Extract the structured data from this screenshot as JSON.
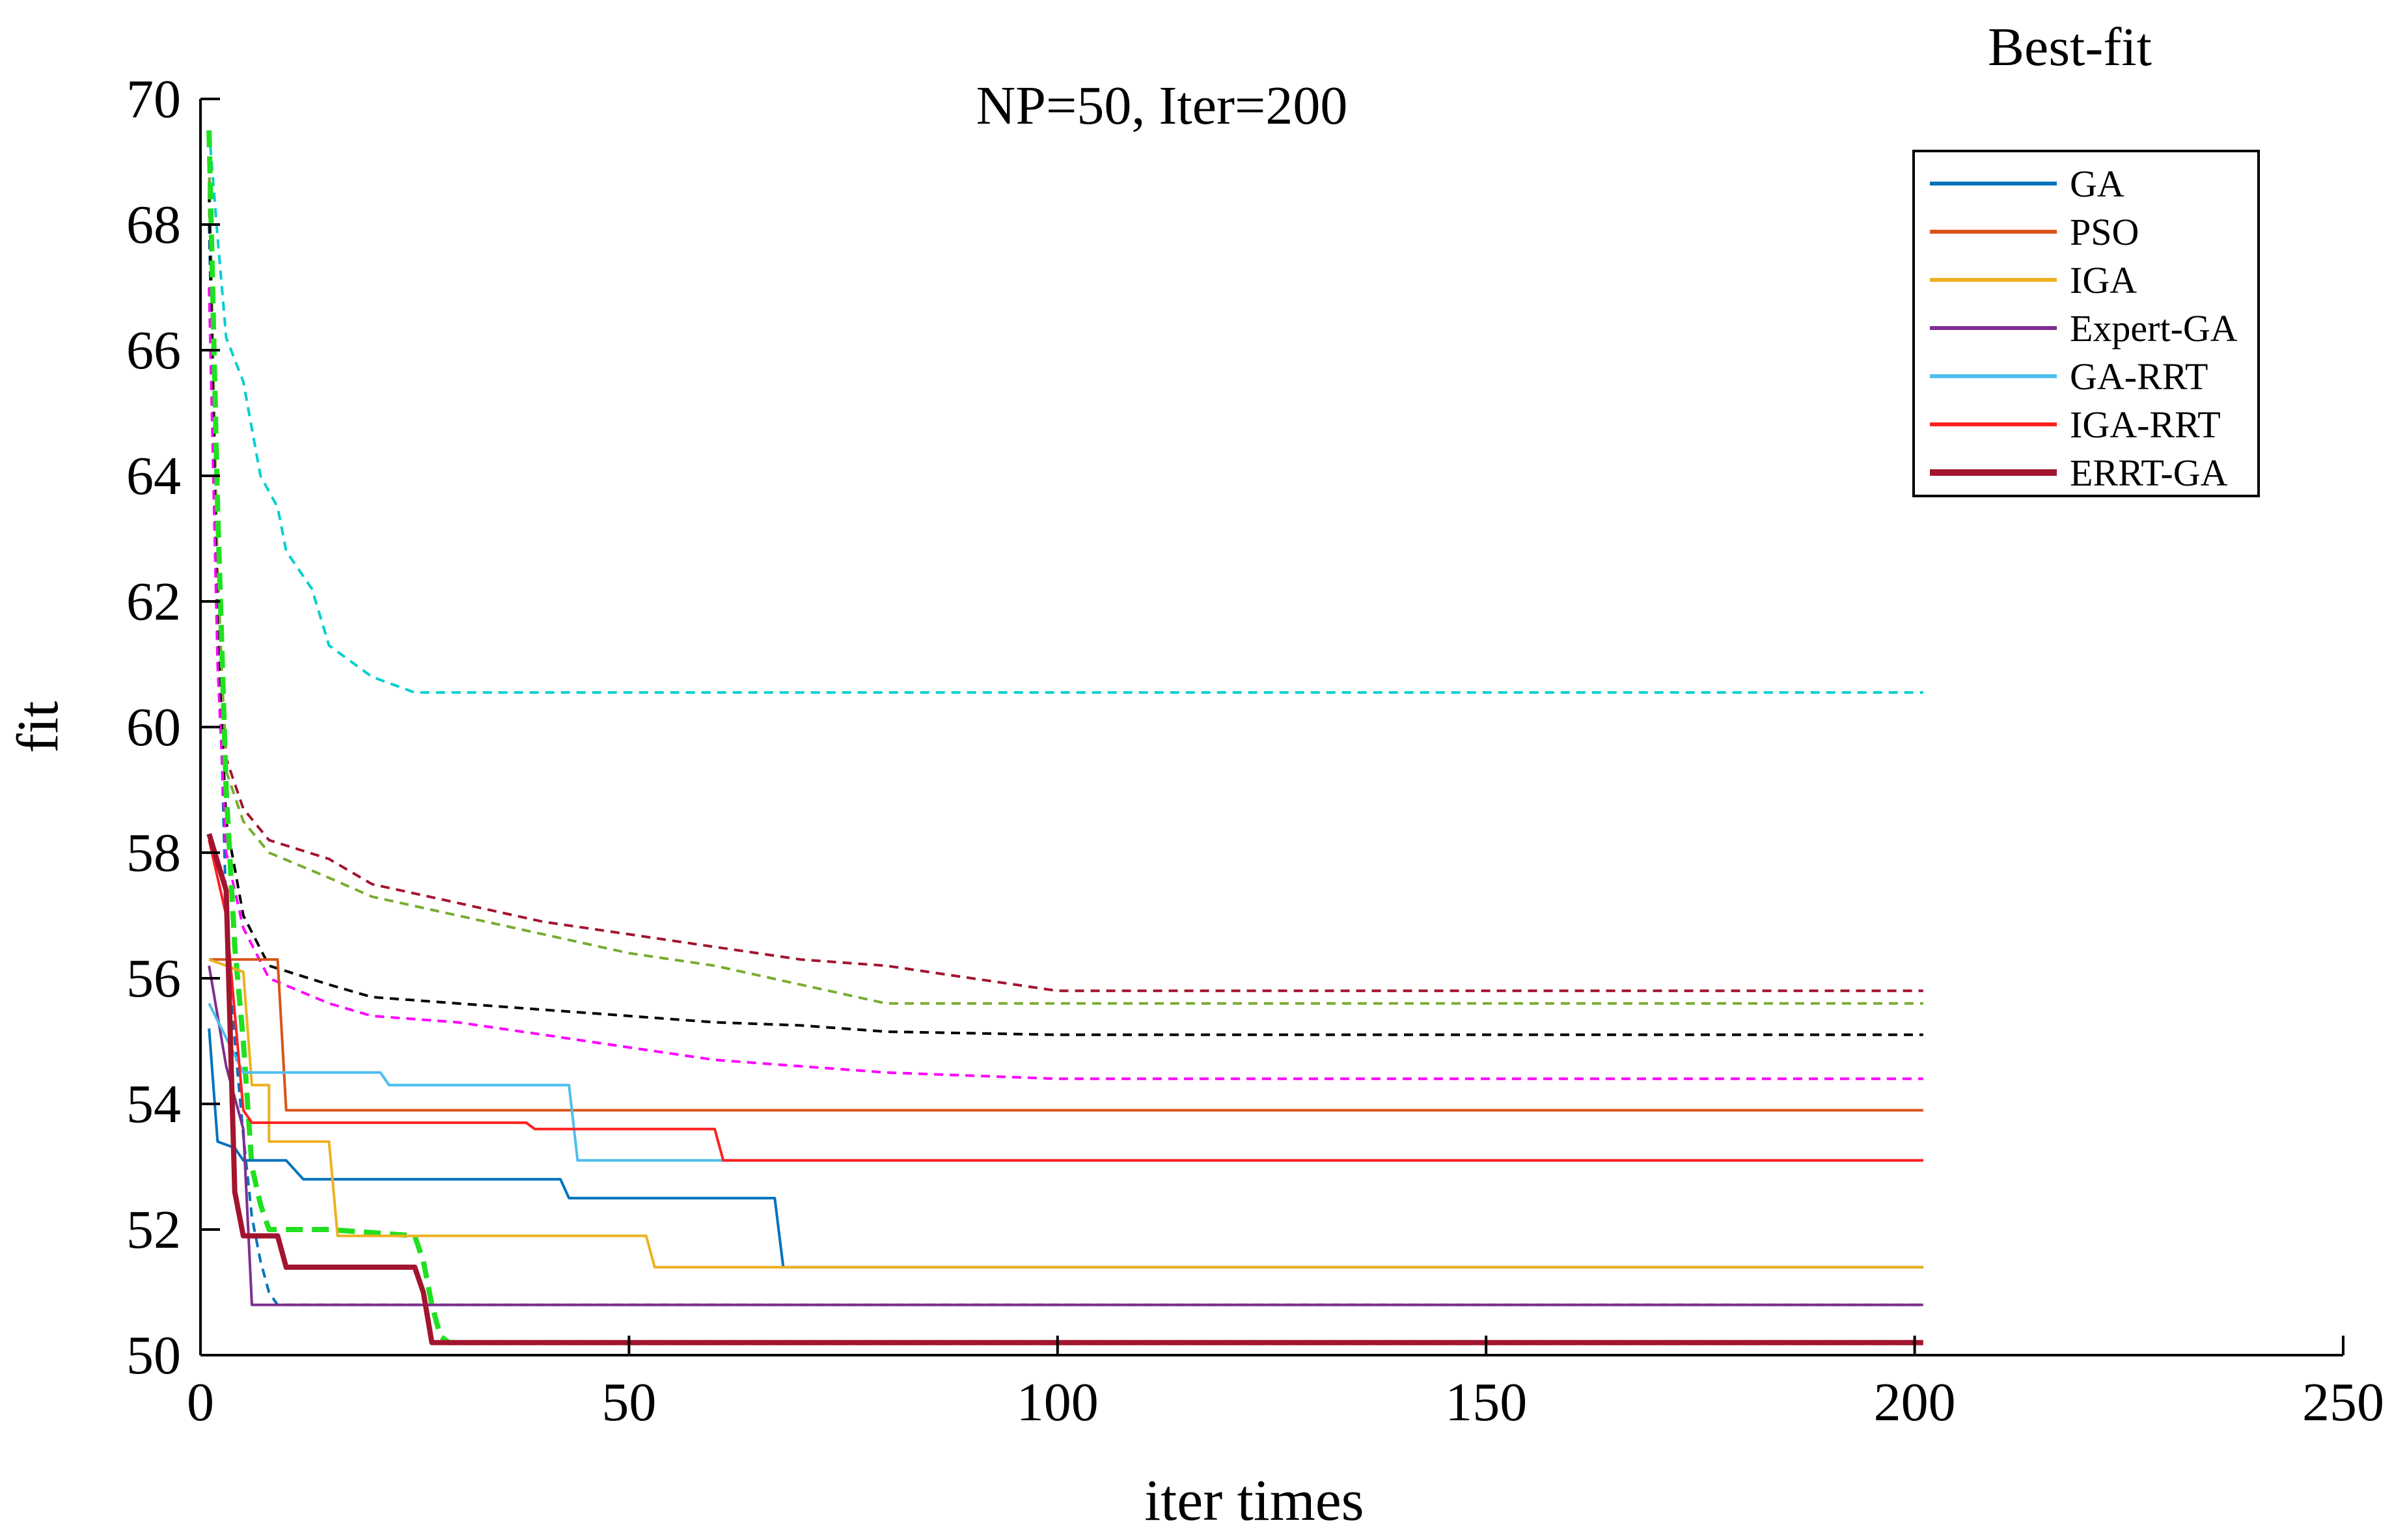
{
  "chart_data": {
    "type": "line",
    "title": "NP=50, Iter=200",
    "corner_label": "Best-fit",
    "xlabel": "iter times",
    "ylabel": "fit",
    "xlim": [
      0,
      250
    ],
    "ylim": [
      50,
      70
    ],
    "xticks": [
      "0",
      "50",
      "100",
      "150",
      "200",
      "250"
    ],
    "yticks": [
      "50",
      "52",
      "54",
      "56",
      "58",
      "60",
      "62",
      "64",
      "66",
      "68",
      "70"
    ],
    "grid": false,
    "legend_position": "top-right",
    "series": [
      {
        "name": "GA",
        "color": "#0072BD",
        "dash": false,
        "width": 4,
        "points": [
          [
            1,
            55.2
          ],
          [
            2,
            53.4
          ],
          [
            4,
            53.3
          ],
          [
            5,
            53.1
          ],
          [
            10,
            53.1
          ],
          [
            12,
            52.8
          ],
          [
            42,
            52.8
          ],
          [
            43,
            52.5
          ],
          [
            67,
            52.5
          ],
          [
            68,
            51.4
          ],
          [
            201,
            51.4
          ]
        ]
      },
      {
        "name": "PSO",
        "color": "#D95319",
        "dash": false,
        "width": 4,
        "points": [
          [
            1,
            56.3
          ],
          [
            9,
            56.3
          ],
          [
            10,
            53.9
          ],
          [
            201,
            53.9
          ]
        ]
      },
      {
        "name": "IGA",
        "color": "#EDB120",
        "dash": false,
        "width": 4,
        "points": [
          [
            1,
            56.3
          ],
          [
            5,
            56.1
          ],
          [
            6,
            54.3
          ],
          [
            8,
            54.3
          ],
          [
            8,
            53.4
          ],
          [
            15,
            53.4
          ],
          [
            16,
            51.9
          ],
          [
            52,
            51.9
          ],
          [
            53,
            51.4
          ],
          [
            201,
            51.4
          ]
        ]
      },
      {
        "name": "Expert-GA",
        "color": "#7E2F8E",
        "dash": false,
        "width": 4,
        "points": [
          [
            1,
            56.2
          ],
          [
            3,
            54.6
          ],
          [
            5,
            53.6
          ],
          [
            6,
            50.8
          ],
          [
            201,
            50.8
          ]
        ]
      },
      {
        "name": "GA-RRT",
        "color": "#4DBEEE",
        "dash": false,
        "width": 4,
        "points": [
          [
            1,
            55.6
          ],
          [
            5,
            54.5
          ],
          [
            21,
            54.5
          ],
          [
            22,
            54.3
          ],
          [
            43,
            54.3
          ],
          [
            44,
            53.1
          ],
          [
            201,
            53.1
          ]
        ]
      },
      {
        "name": "IGA-RRT",
        "color": "#FF2020",
        "dash": false,
        "width": 4,
        "points": [
          [
            1,
            58.2
          ],
          [
            3,
            57.0
          ],
          [
            5,
            53.9
          ],
          [
            6,
            53.7
          ],
          [
            38,
            53.7
          ],
          [
            39,
            53.6
          ],
          [
            60,
            53.6
          ],
          [
            61,
            53.1
          ],
          [
            201,
            53.1
          ]
        ]
      },
      {
        "name": "ERRT-GA",
        "color": "#A2142F",
        "dash": false,
        "width": 8,
        "points": [
          [
            1,
            58.3
          ],
          [
            3,
            57.4
          ],
          [
            4,
            52.6
          ],
          [
            5,
            51.9
          ],
          [
            9,
            51.9
          ],
          [
            10,
            51.4
          ],
          [
            25,
            51.4
          ],
          [
            26,
            51.0
          ],
          [
            27,
            50.2
          ],
          [
            201,
            50.2
          ]
        ]
      },
      {
        "name": "",
        "color": "#0072BD",
        "dash": true,
        "width": 4,
        "points": [
          [
            1,
            68.0
          ],
          [
            2,
            62.0
          ],
          [
            3,
            57.0
          ],
          [
            4,
            55.0
          ],
          [
            5,
            53.5
          ],
          [
            6,
            52.2
          ],
          [
            7,
            51.5
          ],
          [
            8,
            51.0
          ],
          [
            9,
            50.8
          ],
          [
            201,
            50.8
          ]
        ]
      },
      {
        "name": "",
        "color": "#00D0D0",
        "dash": true,
        "width": 4,
        "points": [
          [
            1,
            69.5
          ],
          [
            2,
            67.8
          ],
          [
            3,
            66.2
          ],
          [
            5,
            65.5
          ],
          [
            7,
            64.0
          ],
          [
            9,
            63.5
          ],
          [
            10,
            62.8
          ],
          [
            13,
            62.2
          ],
          [
            15,
            61.3
          ],
          [
            18,
            61.0
          ],
          [
            20,
            60.8
          ],
          [
            25,
            60.55
          ],
          [
            30,
            60.55
          ],
          [
            201,
            60.55
          ]
        ]
      },
      {
        "name": "",
        "color": "#A2142F",
        "dash": true,
        "width": 4,
        "points": [
          [
            1,
            69.0
          ],
          [
            2,
            62.0
          ],
          [
            3,
            59.5
          ],
          [
            5,
            58.7
          ],
          [
            8,
            58.2
          ],
          [
            15,
            57.9
          ],
          [
            20,
            57.5
          ],
          [
            30,
            57.2
          ],
          [
            40,
            56.9
          ],
          [
            50,
            56.7
          ],
          [
            60,
            56.5
          ],
          [
            70,
            56.3
          ],
          [
            80,
            56.2
          ],
          [
            90,
            56.0
          ],
          [
            100,
            55.8
          ],
          [
            201,
            55.8
          ]
        ]
      },
      {
        "name": "",
        "color": "#77AC30",
        "dash": true,
        "width": 4,
        "points": [
          [
            1,
            69.0
          ],
          [
            2,
            62.5
          ],
          [
            3,
            59.3
          ],
          [
            5,
            58.5
          ],
          [
            8,
            58.0
          ],
          [
            15,
            57.6
          ],
          [
            20,
            57.3
          ],
          [
            30,
            57.0
          ],
          [
            40,
            56.7
          ],
          [
            50,
            56.4
          ],
          [
            60,
            56.2
          ],
          [
            70,
            55.9
          ],
          [
            80,
            55.6
          ],
          [
            100,
            55.6
          ],
          [
            201,
            55.6
          ]
        ]
      },
      {
        "name": "",
        "color": "#000000",
        "dash": true,
        "width": 4,
        "points": [
          [
            1,
            68.5
          ],
          [
            2,
            61.5
          ],
          [
            3,
            58.5
          ],
          [
            5,
            57.0
          ],
          [
            8,
            56.2
          ],
          [
            15,
            55.9
          ],
          [
            20,
            55.7
          ],
          [
            30,
            55.6
          ],
          [
            40,
            55.5
          ],
          [
            50,
            55.4
          ],
          [
            60,
            55.3
          ],
          [
            70,
            55.25
          ],
          [
            80,
            55.15
          ],
          [
            100,
            55.1
          ],
          [
            201,
            55.1
          ]
        ]
      },
      {
        "name": "",
        "color": "#FF00FF",
        "dash": true,
        "width": 4,
        "points": [
          [
            1,
            67.0
          ],
          [
            2,
            61.0
          ],
          [
            3,
            58.0
          ],
          [
            5,
            56.8
          ],
          [
            8,
            56.0
          ],
          [
            15,
            55.6
          ],
          [
            20,
            55.4
          ],
          [
            30,
            55.3
          ],
          [
            40,
            55.1
          ],
          [
            50,
            54.9
          ],
          [
            60,
            54.7
          ],
          [
            70,
            54.6
          ],
          [
            80,
            54.5
          ],
          [
            100,
            54.4
          ],
          [
            201,
            54.4
          ]
        ]
      },
      {
        "name": "",
        "color": "#20E020",
        "dash": true,
        "width": 8,
        "points": [
          [
            1,
            69.5
          ],
          [
            2,
            63.5
          ],
          [
            3,
            59.0
          ],
          [
            4,
            56.5
          ],
          [
            5,
            55.0
          ],
          [
            6,
            53.0
          ],
          [
            7,
            52.4
          ],
          [
            8,
            52.0
          ],
          [
            15,
            52.0
          ],
          [
            20,
            51.95
          ],
          [
            25,
            51.9
          ],
          [
            26,
            51.5
          ],
          [
            27,
            50.8
          ],
          [
            28,
            50.3
          ],
          [
            29,
            50.2
          ],
          [
            201,
            50.2
          ]
        ]
      }
    ]
  }
}
